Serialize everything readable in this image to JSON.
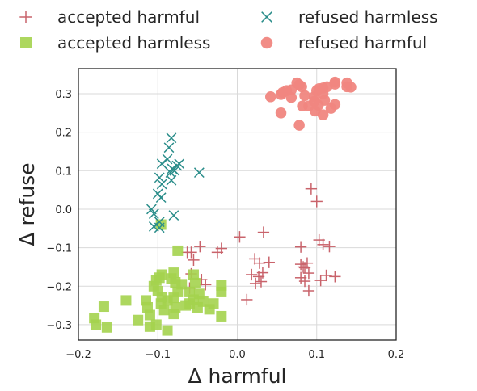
{
  "chart_data": {
    "type": "scatter",
    "title": "",
    "xlabel": "Δ harmful",
    "ylabel": "Δ refuse",
    "xlim": [
      -0.2,
      0.2
    ],
    "ylim": [
      -0.34,
      0.365
    ],
    "xticks": [
      "−0.2",
      "−0.1",
      "0.0",
      "0.1",
      "0.2"
    ],
    "yticks": [
      "−0.3",
      "−0.2",
      "−0.1",
      "0.0",
      "0.1",
      "0.2",
      "0.3"
    ],
    "grid": true,
    "legend_position": "top, outside plot, two columns",
    "series": [
      {
        "name": "accepted harmful",
        "marker": "plus",
        "color": "#c9636b",
        "points": [
          [
            -0.063,
            -0.112
          ],
          [
            -0.025,
            -0.112
          ],
          [
            -0.058,
            -0.112
          ],
          [
            -0.047,
            -0.097
          ],
          [
            -0.02,
            -0.102
          ],
          [
            -0.055,
            -0.132
          ],
          [
            0.003,
            -0.072
          ],
          [
            0.033,
            -0.06
          ],
          [
            0.093,
            0.053
          ],
          [
            0.1,
            0.02
          ],
          [
            -0.058,
            -0.168
          ],
          [
            -0.045,
            -0.183
          ],
          [
            -0.04,
            -0.196
          ],
          [
            -0.06,
            -0.205
          ],
          [
            0.022,
            -0.129
          ],
          [
            0.028,
            -0.14
          ],
          [
            0.04,
            -0.138
          ],
          [
            0.018,
            -0.17
          ],
          [
            0.027,
            -0.175
          ],
          [
            0.032,
            -0.165
          ],
          [
            0.023,
            -0.193
          ],
          [
            0.03,
            -0.188
          ],
          [
            0.012,
            -0.235
          ],
          [
            0.08,
            -0.098
          ],
          [
            0.103,
            -0.08
          ],
          [
            0.108,
            -0.092
          ],
          [
            0.116,
            -0.097
          ],
          [
            0.08,
            -0.143
          ],
          [
            0.088,
            -0.14
          ],
          [
            0.085,
            -0.152
          ],
          [
            0.09,
            -0.166
          ],
          [
            0.08,
            -0.178
          ],
          [
            0.085,
            -0.187
          ],
          [
            0.09,
            -0.212
          ],
          [
            0.105,
            -0.185
          ],
          [
            0.112,
            -0.172
          ],
          [
            0.123,
            -0.175
          ],
          [
            0.083,
            -0.15
          ]
        ]
      },
      {
        "name": "accepted harmless",
        "marker": "square",
        "color": "#a4d34e",
        "points": [
          [
            -0.096,
            -0.04
          ],
          [
            -0.075,
            -0.108
          ],
          [
            -0.18,
            -0.283
          ],
          [
            -0.178,
            -0.3
          ],
          [
            -0.164,
            -0.307
          ],
          [
            -0.168,
            -0.253
          ],
          [
            -0.14,
            -0.237
          ],
          [
            -0.115,
            -0.237
          ],
          [
            -0.113,
            -0.255
          ],
          [
            -0.11,
            -0.275
          ],
          [
            -0.125,
            -0.288
          ],
          [
            -0.11,
            -0.305
          ],
          [
            -0.102,
            -0.3
          ],
          [
            -0.088,
            -0.315
          ],
          [
            -0.098,
            -0.178
          ],
          [
            -0.095,
            -0.17
          ],
          [
            -0.105,
            -0.2
          ],
          [
            -0.1,
            -0.213
          ],
          [
            -0.096,
            -0.245
          ],
          [
            -0.092,
            -0.262
          ],
          [
            -0.08,
            -0.272
          ],
          [
            -0.078,
            -0.255
          ],
          [
            -0.08,
            -0.23
          ],
          [
            -0.075,
            -0.215
          ],
          [
            -0.083,
            -0.18
          ],
          [
            -0.07,
            -0.195
          ],
          [
            -0.055,
            -0.17
          ],
          [
            -0.053,
            -0.192
          ],
          [
            -0.06,
            -0.215
          ],
          [
            -0.048,
            -0.22
          ],
          [
            -0.055,
            -0.235
          ],
          [
            -0.06,
            -0.245
          ],
          [
            -0.043,
            -0.24
          ],
          [
            -0.035,
            -0.26
          ],
          [
            -0.03,
            -0.245
          ],
          [
            -0.02,
            -0.215
          ],
          [
            -0.02,
            -0.198
          ],
          [
            -0.02,
            -0.278
          ],
          [
            -0.088,
            -0.237
          ],
          [
            -0.078,
            -0.19
          ],
          [
            -0.065,
            -0.25
          ],
          [
            -0.05,
            -0.255
          ],
          [
            -0.095,
            -0.228
          ],
          [
            -0.08,
            -0.165
          ],
          [
            -0.102,
            -0.185
          ]
        ]
      },
      {
        "name": "refused harmless",
        "marker": "x",
        "color": "#2a8d8a",
        "points": [
          [
            -0.083,
            0.185
          ],
          [
            -0.086,
            0.16
          ],
          [
            -0.088,
            0.13
          ],
          [
            -0.095,
            0.118
          ],
          [
            -0.082,
            0.105
          ],
          [
            -0.076,
            0.113
          ],
          [
            -0.073,
            0.118
          ],
          [
            -0.098,
            0.082
          ],
          [
            -0.095,
            0.065
          ],
          [
            -0.084,
            0.095
          ],
          [
            -0.096,
            0.03
          ],
          [
            -0.1,
            0.04
          ],
          [
            -0.098,
            -0.033
          ],
          [
            -0.108,
            0.0
          ],
          [
            -0.105,
            -0.012
          ],
          [
            -0.105,
            -0.045
          ],
          [
            -0.098,
            -0.048
          ],
          [
            -0.08,
            -0.016
          ],
          [
            -0.048,
            0.095
          ],
          [
            -0.079,
            0.1
          ],
          [
            -0.083,
            0.075
          ]
        ]
      },
      {
        "name": "refused harmful",
        "marker": "circle",
        "color": "#f08680",
        "points": [
          [
            0.042,
            0.292
          ],
          [
            0.055,
            0.298
          ],
          [
            0.057,
            0.303
          ],
          [
            0.062,
            0.308
          ],
          [
            0.068,
            0.31
          ],
          [
            0.075,
            0.328
          ],
          [
            0.078,
            0.323
          ],
          [
            0.081,
            0.318
          ],
          [
            0.085,
            0.295
          ],
          [
            0.055,
            0.25
          ],
          [
            0.078,
            0.218
          ],
          [
            0.082,
            0.268
          ],
          [
            0.09,
            0.268
          ],
          [
            0.097,
            0.292
          ],
          [
            0.097,
            0.28
          ],
          [
            0.1,
            0.308
          ],
          [
            0.103,
            0.313
          ],
          [
            0.108,
            0.315
          ],
          [
            0.113,
            0.318
          ],
          [
            0.108,
            0.3
          ],
          [
            0.11,
            0.283
          ],
          [
            0.098,
            0.255
          ],
          [
            0.102,
            0.27
          ],
          [
            0.118,
            0.262
          ],
          [
            0.123,
            0.272
          ],
          [
            0.123,
            0.33
          ],
          [
            0.138,
            0.318
          ],
          [
            0.138,
            0.328
          ],
          [
            0.143,
            0.317
          ],
          [
            0.123,
            0.325
          ],
          [
            0.108,
            0.245
          ],
          [
            0.068,
            0.29
          ]
        ]
      }
    ]
  }
}
